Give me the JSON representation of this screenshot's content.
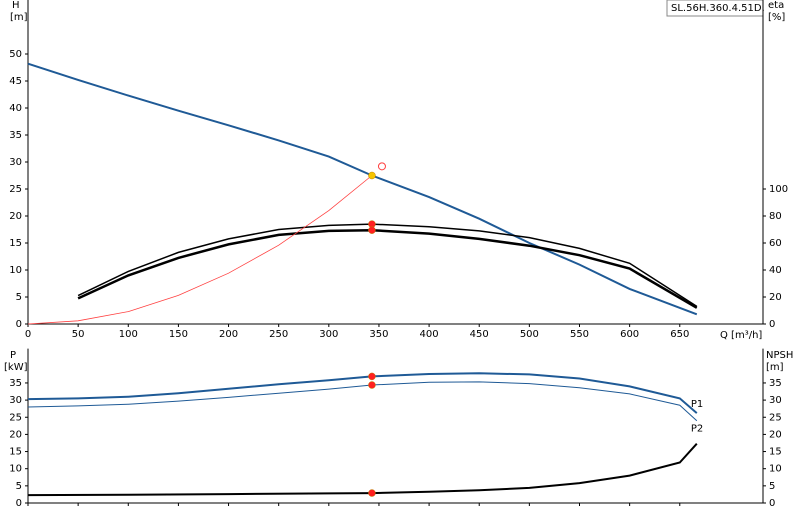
{
  "chart_data": [
    {
      "type": "line",
      "annotation": "SL.56H.360.4.51D.",
      "y_label": "H",
      "y_unit": "[m]",
      "y2_label": "eta",
      "y2_unit": "[%]",
      "x_label": "Q [m³/h]",
      "xlim": [
        0,
        733
      ],
      "xticks": [
        0,
        50,
        100,
        150,
        200,
        250,
        300,
        350,
        400,
        450,
        500,
        550,
        600,
        650
      ],
      "ylim": [
        0,
        60
      ],
      "yticks": [
        0,
        5,
        10,
        15,
        20,
        25,
        30,
        35,
        40,
        45,
        50
      ],
      "y2lim": [
        0,
        240
      ],
      "y2ticks": [
        0,
        20,
        40,
        60,
        80,
        100
      ],
      "series": [
        {
          "color": "#1f5a96",
          "width": 2,
          "x": [
            0,
            50,
            100,
            150,
            200,
            250,
            300,
            343,
            400,
            450,
            500,
            550,
            600,
            667
          ],
          "values": [
            48.2,
            45.2,
            42.3,
            39.5,
            36.8,
            34,
            31,
            27.5,
            23.5,
            19.5,
            15,
            11,
            6.5,
            1.8
          ]
        },
        {
          "color": "#000000",
          "width": 1.5,
          "axis": "y2",
          "x": [
            50,
            100,
            150,
            200,
            250,
            300,
            343,
            400,
            450,
            500,
            550,
            600,
            667
          ],
          "values": [
            21,
            39,
            53,
            63,
            70,
            73,
            74,
            72,
            69,
            64,
            56,
            45,
            13
          ]
        },
        {
          "color": "#000000",
          "width": 2.5,
          "axis": "y2",
          "x": [
            50,
            100,
            150,
            200,
            250,
            300,
            343,
            400,
            450,
            500,
            550,
            600,
            667
          ],
          "values": [
            19,
            36,
            49,
            59,
            66,
            69,
            69.5,
            67,
            63,
            58,
            51,
            41,
            12
          ]
        },
        {
          "color": "#ff4040",
          "width": 0.8,
          "x": [
            0,
            50,
            100,
            150,
            200,
            250,
            300,
            343
          ],
          "values": [
            0,
            0.6,
            2.3,
            5.3,
            9.4,
            14.6,
            21,
            27.5
          ]
        }
      ],
      "markers": [
        {
          "x": 343,
          "y": 27.5,
          "color": "#f5c400"
        },
        {
          "x": 353,
          "y": 29.2,
          "color": "#ff4040",
          "hollow": true
        },
        {
          "x": 343,
          "y": 74,
          "axis": "y2",
          "color": "#ff2020"
        },
        {
          "x": 343,
          "y": 69.5,
          "axis": "y2",
          "color": "#ff2020"
        }
      ]
    },
    {
      "type": "line",
      "y_label": "P",
      "y_unit": "[kW]",
      "y2_label": "NPSH",
      "y2_unit": "[m]",
      "xlim": [
        0,
        733
      ],
      "ylim": [
        0,
        45
      ],
      "yticks": [
        0,
        5,
        10,
        15,
        20,
        25,
        30,
        35
      ],
      "y2lim": [
        0,
        45
      ],
      "y2ticks": [
        0,
        5,
        10,
        15,
        20,
        25,
        30,
        35
      ],
      "series": [
        {
          "name": "P1",
          "color": "#1f5a96",
          "width": 2,
          "x": [
            0,
            50,
            100,
            150,
            200,
            250,
            300,
            343,
            400,
            450,
            500,
            550,
            600,
            650,
            667
          ],
          "values": [
            30.3,
            30.5,
            31,
            32,
            33.3,
            34.6,
            35.8,
            36.9,
            37.6,
            37.8,
            37.5,
            36.3,
            34,
            30.5,
            26.2
          ]
        },
        {
          "name": "P2",
          "color": "#1f5a96",
          "width": 1,
          "x": [
            0,
            50,
            100,
            150,
            200,
            250,
            300,
            343,
            400,
            450,
            500,
            550,
            600,
            650,
            667
          ],
          "values": [
            28,
            28.3,
            28.8,
            29.7,
            30.8,
            32,
            33.2,
            34.4,
            35.2,
            35.3,
            34.8,
            33.6,
            31.8,
            28.5,
            24
          ]
        },
        {
          "color": "#000000",
          "width": 2,
          "axis": "y2",
          "x": [
            0,
            100,
            200,
            300,
            343,
            400,
            450,
            500,
            550,
            600,
            650,
            667
          ],
          "values": [
            2.3,
            2.4,
            2.6,
            2.8,
            2.9,
            3.3,
            3.7,
            4.4,
            5.8,
            8,
            11.8,
            17.3
          ]
        }
      ],
      "markers": [
        {
          "x": 343,
          "y": 36.9,
          "color": "#ff2020"
        },
        {
          "x": 343,
          "y": 34.4,
          "color": "#ff2020"
        },
        {
          "x": 343,
          "y": 2.9,
          "axis": "y2",
          "color": "#ff2020"
        }
      ]
    }
  ]
}
